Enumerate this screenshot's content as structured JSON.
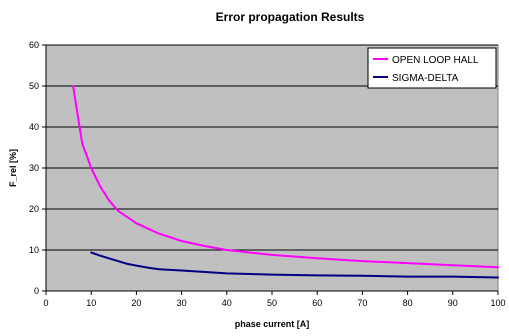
{
  "chart_data": {
    "type": "line",
    "title": "Error propagation Results",
    "xlabel": "phase current [A]",
    "ylabel": "F_rel [%]",
    "xlim": [
      0,
      100
    ],
    "ylim": [
      0,
      60
    ],
    "xticks": [
      "0",
      "10",
      "20",
      "30",
      "40",
      "50",
      "60",
      "70",
      "80",
      "90",
      "100"
    ],
    "yticks": [
      "0",
      "10",
      "20",
      "30",
      "40",
      "50",
      "60"
    ],
    "grid": "horizontal",
    "legend_position": "top-right",
    "plot_background": "#c0c0c0",
    "series": [
      {
        "name": "OPEN LOOP HALL",
        "color": "#ff00ff",
        "x": [
          6,
          7,
          8,
          9,
          10,
          12,
          14,
          16,
          18,
          20,
          25,
          30,
          35,
          40,
          45,
          50,
          60,
          70,
          80,
          90,
          100
        ],
        "y": [
          50,
          43,
          36,
          33,
          30,
          25.5,
          22,
          19.5,
          18,
          16.5,
          14,
          12.2,
          11,
          10,
          9.4,
          8.8,
          8,
          7.3,
          6.8,
          6.3,
          5.8
        ]
      },
      {
        "name": "SIGMA-DELTA",
        "color": "#000080",
        "x": [
          10,
          12,
          15,
          18,
          20,
          23,
          25,
          30,
          40,
          50,
          60,
          70,
          80,
          90,
          100
        ],
        "y": [
          9.4,
          8.6,
          7.6,
          6.6,
          6.2,
          5.6,
          5.3,
          5,
          4.3,
          4,
          3.8,
          3.7,
          3.5,
          3.5,
          3.3
        ]
      }
    ]
  }
}
